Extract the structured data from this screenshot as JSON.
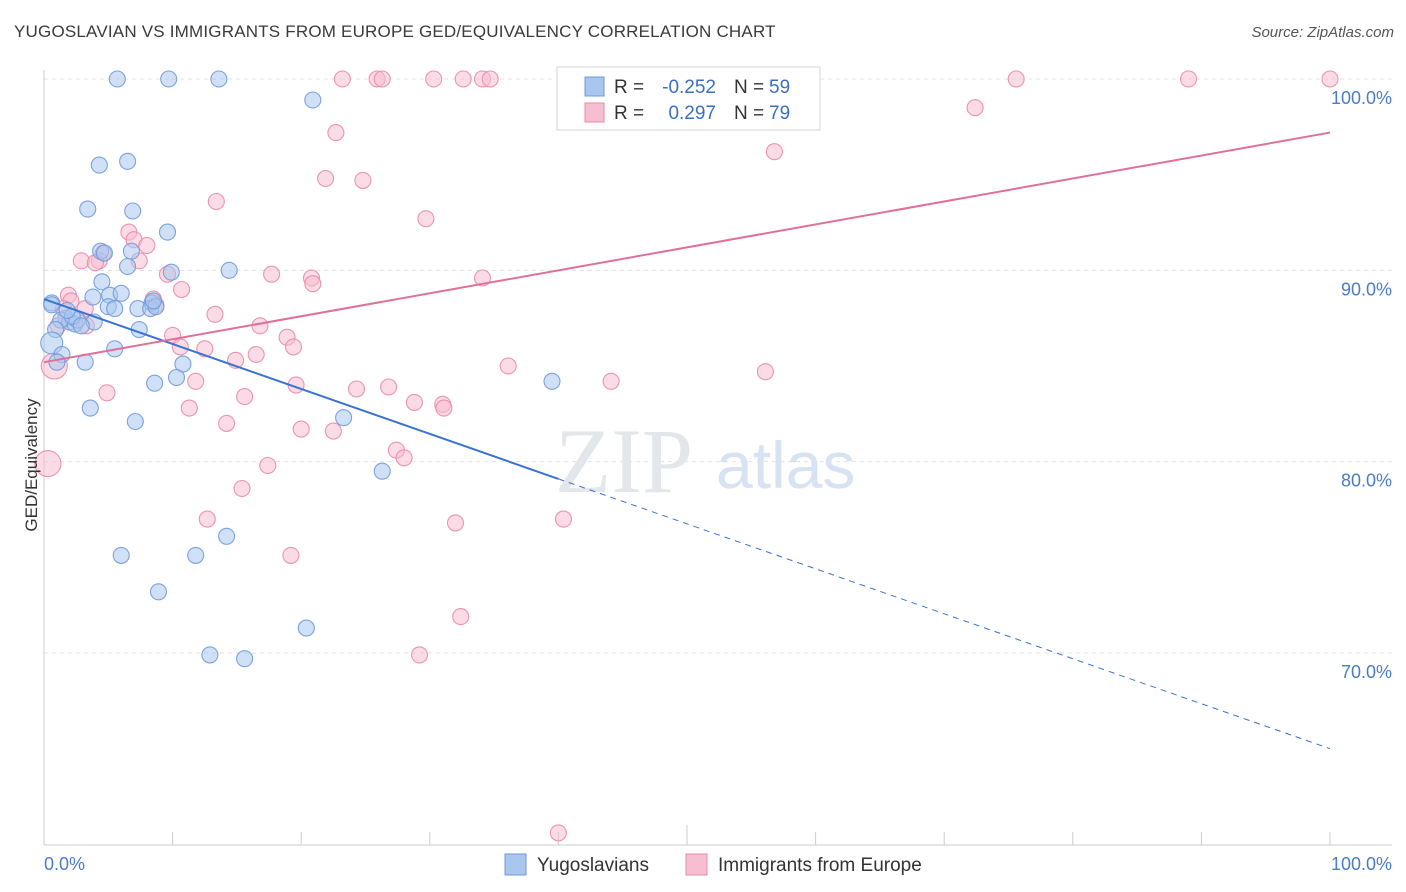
{
  "title": "YUGOSLAVIAN VS IMMIGRANTS FROM EUROPE GED/EQUIVALENCY CORRELATION CHART",
  "source": "Source: ZipAtlas.com",
  "watermark": {
    "zip": "ZIP",
    "atlas": "atlas"
  },
  "colors": {
    "blue_fill": "#a9c7ee",
    "blue_stroke": "#6f9ad8",
    "blue_line": "#3a74d0",
    "pink_fill": "#f7bdd0",
    "pink_stroke": "#e98aab",
    "pink_line": "#e0709a",
    "axis_text": "#4a7cc8",
    "grid": "#dde3ea"
  },
  "legend": {
    "rows": [
      {
        "series": "Yugoslavians",
        "r_label": "R =",
        "r_value": "-0.252",
        "n_label": "N =",
        "n_value": "59"
      },
      {
        "series": "Immigrants from Europe",
        "r_label": "R =",
        "r_value": "0.297",
        "n_label": "N =",
        "n_value": "79"
      }
    ]
  },
  "chart_data": {
    "type": "scatter",
    "title": "YUGOSLAVIAN VS IMMIGRANTS FROM EUROPE GED/EQUIVALENCY CORRELATION CHART",
    "xlabel": "",
    "ylabel": "GED/Equivalency",
    "xlim": [
      0,
      100
    ],
    "ylim": [
      60.5,
      101.5
    ],
    "x_tick_labels": [
      "0.0%",
      "100.0%"
    ],
    "y_ticks": [
      70,
      80,
      90,
      100
    ],
    "y_tick_labels": [
      "70.0%",
      "80.0%",
      "90.0%",
      "100.0%"
    ],
    "grid": true,
    "legend_position": "top-center",
    "series": [
      {
        "name": "Yugoslavians",
        "color": "#a9c7ee",
        "trend": {
          "x0": 0,
          "y0": 88.5,
          "x1": 40,
          "y1": 79.1,
          "dashed_to_x": 100,
          "dashed_to_y": 65.0
        },
        "points": [
          [
            5.7,
            100
          ],
          [
            9.7,
            100
          ],
          [
            13.6,
            100
          ],
          [
            20.9,
            98.9
          ],
          [
            4.3,
            95.5
          ],
          [
            6.5,
            95.7
          ],
          [
            3.4,
            93.2
          ],
          [
            6.9,
            93.1
          ],
          [
            9.6,
            92.0
          ],
          [
            4.4,
            91.0
          ],
          [
            4.7,
            90.9
          ],
          [
            6.5,
            90.2
          ],
          [
            9.9,
            89.9
          ],
          [
            14.4,
            90.0
          ],
          [
            0.6,
            88.3
          ],
          [
            3.8,
            88.6
          ],
          [
            4.5,
            89.4
          ],
          [
            5.1,
            88.7
          ],
          [
            6.0,
            88.8
          ],
          [
            7.3,
            88.0
          ],
          [
            8.4,
            88.3
          ],
          [
            8.3,
            88.0
          ],
          [
            8.7,
            88.1
          ],
          [
            8.5,
            88.4
          ],
          [
            5.0,
            88.1
          ],
          [
            5.5,
            88.0
          ],
          [
            1.7,
            87.5
          ],
          [
            2.0,
            87.3
          ],
          [
            2.4,
            87.2
          ],
          [
            2.6,
            87.4
          ],
          [
            3.9,
            87.3
          ],
          [
            1.3,
            87.4
          ],
          [
            0.9,
            86.9
          ],
          [
            7.4,
            86.9
          ],
          [
            0.6,
            86.2
          ],
          [
            1.4,
            85.6
          ],
          [
            1.0,
            85.2
          ],
          [
            3.2,
            85.2
          ],
          [
            5.5,
            85.9
          ],
          [
            10.8,
            85.1
          ],
          [
            10.3,
            84.4
          ],
          [
            8.6,
            84.1
          ],
          [
            39.5,
            84.2
          ],
          [
            3.6,
            82.8
          ],
          [
            7.1,
            82.1
          ],
          [
            23.3,
            82.3
          ],
          [
            26.3,
            79.5
          ],
          [
            14.2,
            76.1
          ],
          [
            6.0,
            75.1
          ],
          [
            11.8,
            75.1
          ],
          [
            8.9,
            73.2
          ],
          [
            20.4,
            71.3
          ],
          [
            12.9,
            69.9
          ],
          [
            15.6,
            69.7
          ],
          [
            0.6,
            88.2
          ],
          [
            2.2,
            87.6
          ],
          [
            6.8,
            91.0
          ],
          [
            1.8,
            87.9
          ],
          [
            2.9,
            87.1
          ]
        ]
      },
      {
        "name": "Immigrants from Europe",
        "color": "#f7bdd0",
        "trend": {
          "x0": 0,
          "y0": 85.2,
          "x1": 100,
          "y1": 97.2
        },
        "points": [
          [
            23.2,
            100
          ],
          [
            25.9,
            100
          ],
          [
            26.3,
            100
          ],
          [
            30.3,
            100
          ],
          [
            32.6,
            100
          ],
          [
            34.1,
            100
          ],
          [
            34.7,
            100
          ],
          [
            48.2,
            100
          ],
          [
            48.9,
            100
          ],
          [
            75.6,
            100
          ],
          [
            89.0,
            100
          ],
          [
            100,
            100
          ],
          [
            72.4,
            98.5
          ],
          [
            22.7,
            97.2
          ],
          [
            21.9,
            94.8
          ],
          [
            24.8,
            94.7
          ],
          [
            56.8,
            96.2
          ],
          [
            13.4,
            93.6
          ],
          [
            29.7,
            92.7
          ],
          [
            6.6,
            92.0
          ],
          [
            7.0,
            91.6
          ],
          [
            8.0,
            91.3
          ],
          [
            4.6,
            90.9
          ],
          [
            2.9,
            90.5
          ],
          [
            4.3,
            90.5
          ],
          [
            7.4,
            90.5
          ],
          [
            9.6,
            89.8
          ],
          [
            17.7,
            89.8
          ],
          [
            20.8,
            89.6
          ],
          [
            20.9,
            89.3
          ],
          [
            34.1,
            89.6
          ],
          [
            1.9,
            88.7
          ],
          [
            2.1,
            88.4
          ],
          [
            8.5,
            88.5
          ],
          [
            10.7,
            89.0
          ],
          [
            8.7,
            88.2
          ],
          [
            3.2,
            88.0
          ],
          [
            1.5,
            88.0
          ],
          [
            13.3,
            87.7
          ],
          [
            16.8,
            87.1
          ],
          [
            1.1,
            87.1
          ],
          [
            3.3,
            87.1
          ],
          [
            10.0,
            86.6
          ],
          [
            18.9,
            86.5
          ],
          [
            19.4,
            86.0
          ],
          [
            10.6,
            86.0
          ],
          [
            12.5,
            85.9
          ],
          [
            14.9,
            85.3
          ],
          [
            16.5,
            85.6
          ],
          [
            0.8,
            85.0
          ],
          [
            36.1,
            85.0
          ],
          [
            56.1,
            84.7
          ],
          [
            11.8,
            84.2
          ],
          [
            4.9,
            83.6
          ],
          [
            19.6,
            84.0
          ],
          [
            24.3,
            83.8
          ],
          [
            26.8,
            83.9
          ],
          [
            44.1,
            84.2
          ],
          [
            15.6,
            83.4
          ],
          [
            11.3,
            82.8
          ],
          [
            28.8,
            83.1
          ],
          [
            31.0,
            83.0
          ],
          [
            31.1,
            82.8
          ],
          [
            14.2,
            82.0
          ],
          [
            20.0,
            81.7
          ],
          [
            22.5,
            81.6
          ],
          [
            27.4,
            80.6
          ],
          [
            28.0,
            80.2
          ],
          [
            0.3,
            79.9
          ],
          [
            17.4,
            79.8
          ],
          [
            15.4,
            78.6
          ],
          [
            12.7,
            77.0
          ],
          [
            32.0,
            76.8
          ],
          [
            40.4,
            77.0
          ],
          [
            19.2,
            75.1
          ],
          [
            32.4,
            71.9
          ],
          [
            29.2,
            69.9
          ],
          [
            40.0,
            60.6
          ],
          [
            4.0,
            90.4
          ]
        ]
      }
    ]
  }
}
